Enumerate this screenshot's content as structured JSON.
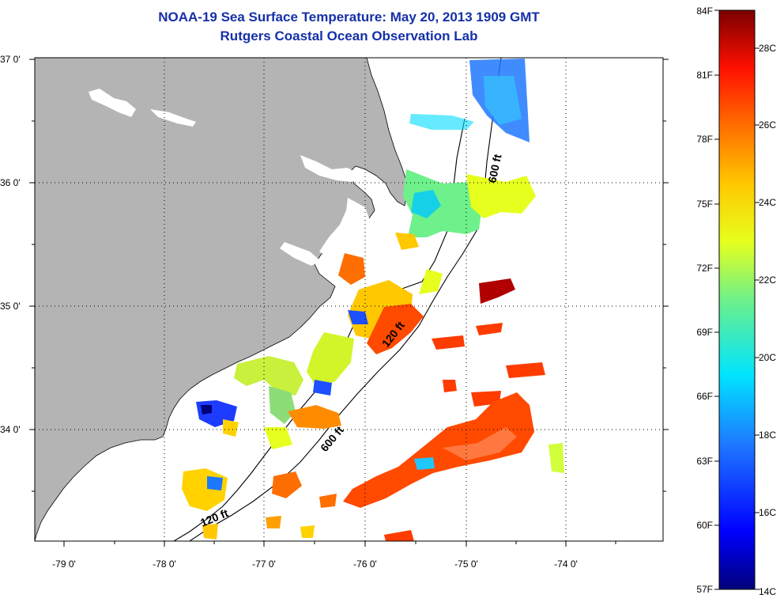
{
  "title": {
    "line1": "NOAA-19 Sea Surface Temperature:  May 20, 2013 1909 GMT",
    "line2": "Rutgers Coastal Ocean Observation Lab"
  },
  "map": {
    "lon_labels": [
      "-79 0'",
      "-78 0'",
      "-77 0'",
      "-76 0'",
      "-75 0'",
      "-74 0'"
    ],
    "lat_labels": [
      "37 0'",
      "36 0'",
      "35 0'",
      "34 0'"
    ],
    "contour_labels": [
      "600 ft",
      "120 ft",
      "600 ft",
      "120 ft"
    ],
    "colors": {
      "land": "#b4b4b4",
      "water": "#ffffff",
      "grid": "#000000"
    }
  },
  "colorbar": {
    "fahrenheit_labels": [
      "84F",
      "81F",
      "78F",
      "75F",
      "72F",
      "69F",
      "66F",
      "63F",
      "60F",
      "57F"
    ],
    "celsius_labels": [
      "28C",
      "26C",
      "24C",
      "22C",
      "20C",
      "18C",
      "16C",
      "14C"
    ],
    "min_f": 57,
    "max_f": 84
  }
}
